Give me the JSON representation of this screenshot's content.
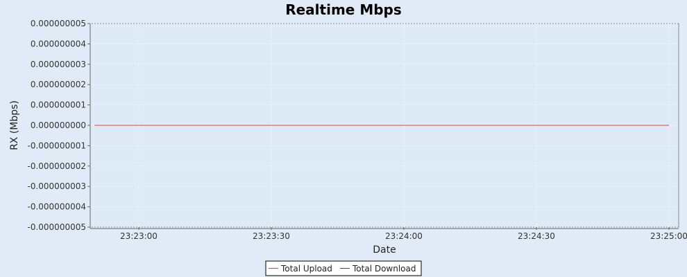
{
  "chart_data": {
    "type": "line",
    "title": "Realtime Mbps",
    "xlabel": "Date",
    "ylabel": "RX (Mbps)",
    "ylim": [
      -5e-09,
      5e-09
    ],
    "yticks": [
      "0.000000005",
      "0.000000004",
      "0.000000003",
      "0.000000002",
      "0.000000001",
      "0.000000000",
      "-0.000000001",
      "-0.000000002",
      "-0.000000003",
      "-0.000000004",
      "-0.000000005"
    ],
    "xticks": [
      "23:23:00",
      "23:23:30",
      "23:24:00",
      "23:24:30",
      "23:25:00"
    ],
    "grid": true,
    "legend_position": "bottom",
    "colors": {
      "background": "#e1ebf7",
      "plot_background": "#dfeaf7",
      "grid": "#f2f6fb",
      "upload": "#e8413a",
      "download": "#3b3bc0"
    },
    "series": [
      {
        "name": "Total Upload",
        "x": [
          "23:22:50",
          "23:25:00"
        ],
        "values": [
          0,
          0
        ]
      },
      {
        "name": "Total Download",
        "x": [],
        "values": []
      }
    ]
  }
}
